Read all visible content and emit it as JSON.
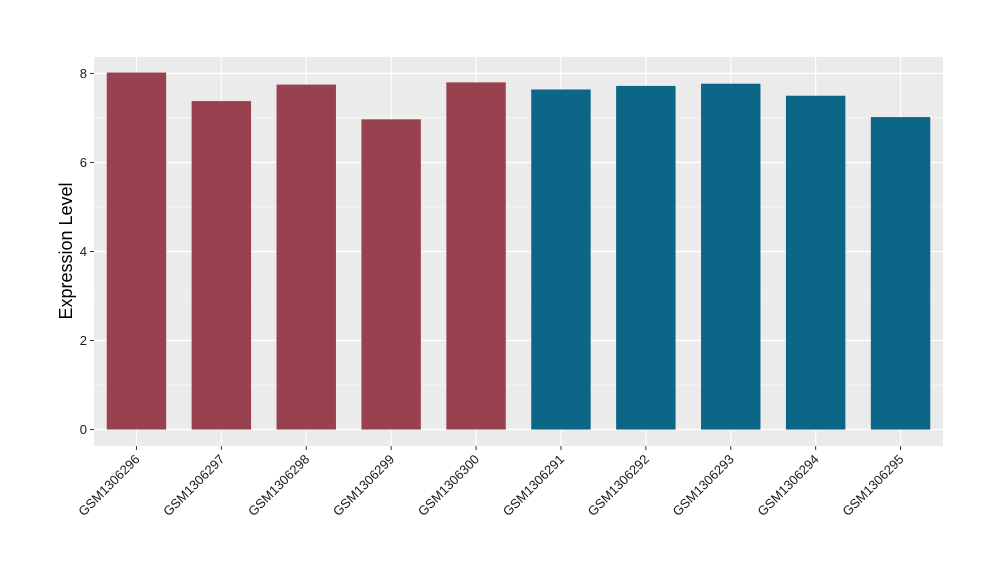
{
  "chart_data": {
    "type": "bar",
    "categories": [
      "GSM1306296",
      "GSM1306297",
      "GSM1306298",
      "GSM1306299",
      "GSM1306300",
      "GSM1306291",
      "GSM1306292",
      "GSM1306293",
      "GSM1306294",
      "GSM1306295"
    ],
    "values": [
      8.02,
      7.38,
      7.75,
      6.97,
      7.8,
      7.64,
      7.72,
      7.77,
      7.5,
      7.02
    ],
    "bar_groups": [
      0,
      0,
      0,
      0,
      0,
      1,
      1,
      1,
      1,
      1
    ],
    "group_colors": [
      "#99424f",
      "#0b6688"
    ],
    "title": "",
    "xlabel": "",
    "ylabel": "Expression Level",
    "ylim": [
      -0.37,
      8.37
    ],
    "yticks": [
      0,
      2,
      4,
      6,
      8
    ],
    "grid": true,
    "panel_background": "#ebebeb",
    "grid_color": "#ffffff"
  }
}
